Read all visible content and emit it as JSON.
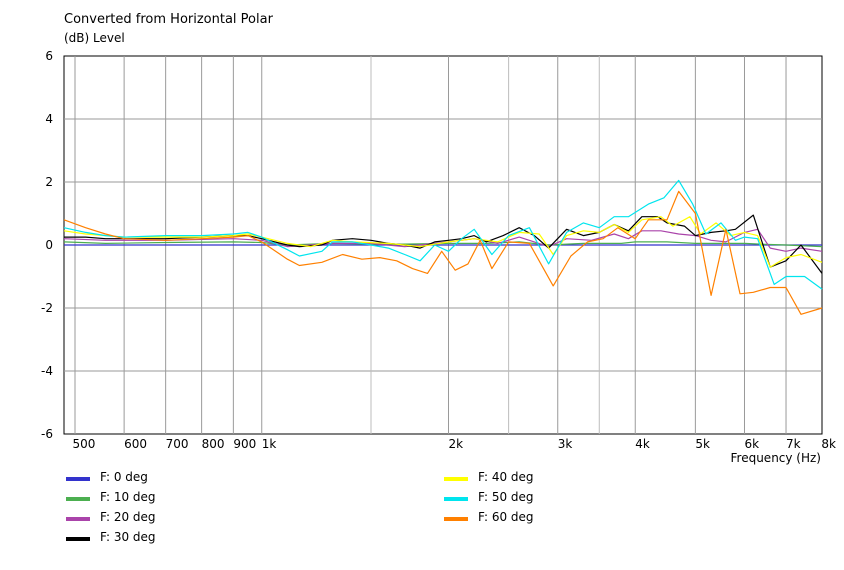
{
  "chart_data": {
    "type": "line",
    "title": "Converted from Horizontal Polar",
    "ylabel": "(dB)  Level",
    "xlabel": "Frequency  (Hz)",
    "x_scale": "log",
    "xlim": [
      480,
      8000
    ],
    "ylim": [
      -6,
      6
    ],
    "y_ticks": [
      {
        "value": 6,
        "label": "6"
      },
      {
        "value": 4,
        "label": "4"
      },
      {
        "value": 2,
        "label": "2"
      },
      {
        "value": 0,
        "label": "0"
      },
      {
        "value": -2,
        "label": "-2"
      },
      {
        "value": -4,
        "label": "-4"
      },
      {
        "value": -6,
        "label": "-6"
      }
    ],
    "x_ticks": [
      {
        "value": 500,
        "label": "500"
      },
      {
        "value": 600,
        "label": "600"
      },
      {
        "value": 700,
        "label": "700"
      },
      {
        "value": 800,
        "label": "800"
      },
      {
        "value": 900,
        "label": "900"
      },
      {
        "value": 1000,
        "label": "1k"
      },
      {
        "value": 2000,
        "label": "2k"
      },
      {
        "value": 3000,
        "label": "3k"
      },
      {
        "value": 4000,
        "label": "4k"
      },
      {
        "value": 5000,
        "label": "5k"
      },
      {
        "value": 6000,
        "label": "6k"
      },
      {
        "value": 7000,
        "label": "7k"
      },
      {
        "value": 8000,
        "label": "8k"
      }
    ],
    "x_minor_gridlines": [
      1500,
      2500,
      3500
    ],
    "grid": true,
    "legend_position": "bottom",
    "series": [
      {
        "name": "F: 0 deg",
        "color": "#3333cc",
        "points": [
          [
            480,
            0
          ],
          [
            600,
            0
          ],
          [
            800,
            0
          ],
          [
            1000,
            0
          ],
          [
            1500,
            0
          ],
          [
            2000,
            0
          ],
          [
            2500,
            0
          ],
          [
            3000,
            0
          ],
          [
            4000,
            0
          ],
          [
            5000,
            0
          ],
          [
            6000,
            0
          ],
          [
            7000,
            0
          ],
          [
            8000,
            0
          ]
        ]
      },
      {
        "name": "F: 10 deg",
        "color": "#4caf50",
        "points": [
          [
            480,
            0.1
          ],
          [
            560,
            0.05
          ],
          [
            700,
            0.08
          ],
          [
            900,
            0.1
          ],
          [
            1000,
            0.08
          ],
          [
            1100,
            0
          ],
          [
            1300,
            0.05
          ],
          [
            1600,
            0.02
          ],
          [
            2000,
            0.05
          ],
          [
            2300,
            0.05
          ],
          [
            2600,
            0.1
          ],
          [
            2900,
            0
          ],
          [
            3300,
            0.05
          ],
          [
            3800,
            0.05
          ],
          [
            4000,
            0.1
          ],
          [
            4500,
            0.1
          ],
          [
            5000,
            0.05
          ],
          [
            5500,
            0.05
          ],
          [
            6000,
            0.05
          ],
          [
            6500,
            0.02
          ],
          [
            7000,
            0
          ],
          [
            8000,
            -0.05
          ]
        ]
      },
      {
        "name": "F: 20 deg",
        "color": "#aa44aa",
        "points": [
          [
            480,
            0.2
          ],
          [
            560,
            0.15
          ],
          [
            700,
            0.15
          ],
          [
            900,
            0.2
          ],
          [
            1000,
            0.15
          ],
          [
            1100,
            -0.05
          ],
          [
            1300,
            0.05
          ],
          [
            1500,
            0.05
          ],
          [
            1700,
            -0.05
          ],
          [
            2000,
            0.1
          ],
          [
            2200,
            0.2
          ],
          [
            2400,
            0.05
          ],
          [
            2600,
            0.25
          ],
          [
            2900,
            -0.05
          ],
          [
            3100,
            0.2
          ],
          [
            3400,
            0.15
          ],
          [
            3700,
            0.35
          ],
          [
            3900,
            0.2
          ],
          [
            4100,
            0.45
          ],
          [
            4400,
            0.45
          ],
          [
            4700,
            0.35
          ],
          [
            5000,
            0.3
          ],
          [
            5300,
            0.15
          ],
          [
            5600,
            0.1
          ],
          [
            6000,
            0.4
          ],
          [
            6300,
            0.5
          ],
          [
            6600,
            -0.1
          ],
          [
            7000,
            -0.2
          ],
          [
            7400,
            -0.1
          ],
          [
            8000,
            -0.2
          ]
        ]
      },
      {
        "name": "F: 30 deg",
        "color": "#000000",
        "points": [
          [
            480,
            0.25
          ],
          [
            520,
            0.25
          ],
          [
            560,
            0.2
          ],
          [
            600,
            0.2
          ],
          [
            700,
            0.2
          ],
          [
            800,
            0.25
          ],
          [
            900,
            0.3
          ],
          [
            950,
            0.3
          ],
          [
            1000,
            0.2
          ],
          [
            1100,
            0
          ],
          [
            1150,
            -0.05
          ],
          [
            1250,
            0
          ],
          [
            1300,
            0.15
          ],
          [
            1400,
            0.2
          ],
          [
            1500,
            0.15
          ],
          [
            1600,
            0.05
          ],
          [
            1700,
            0
          ],
          [
            1800,
            -0.1
          ],
          [
            1900,
            0.1
          ],
          [
            2000,
            0.15
          ],
          [
            2100,
            0.2
          ],
          [
            2200,
            0.3
          ],
          [
            2300,
            0.1
          ],
          [
            2450,
            0.3
          ],
          [
            2600,
            0.55
          ],
          [
            2750,
            0.3
          ],
          [
            2900,
            -0.1
          ],
          [
            3100,
            0.5
          ],
          [
            3300,
            0.3
          ],
          [
            3500,
            0.4
          ],
          [
            3700,
            0.65
          ],
          [
            3900,
            0.45
          ],
          [
            4100,
            0.9
          ],
          [
            4350,
            0.9
          ],
          [
            4500,
            0.7
          ],
          [
            4800,
            0.6
          ],
          [
            5000,
            0.3
          ],
          [
            5300,
            0.4
          ],
          [
            5600,
            0.45
          ],
          [
            5800,
            0.5
          ],
          [
            6200,
            0.95
          ],
          [
            6600,
            -0.7
          ],
          [
            7000,
            -0.5
          ],
          [
            7400,
            0.0
          ],
          [
            8000,
            -0.9
          ]
        ]
      },
      {
        "name": "F: 40 deg",
        "color": "#ffff00",
        "points": [
          [
            480,
            0.45
          ],
          [
            520,
            0.35
          ],
          [
            560,
            0.3
          ],
          [
            600,
            0.25
          ],
          [
            700,
            0.25
          ],
          [
            800,
            0.25
          ],
          [
            900,
            0.3
          ],
          [
            950,
            0.35
          ],
          [
            1000,
            0.25
          ],
          [
            1100,
            0.05
          ],
          [
            1200,
            -0.05
          ],
          [
            1300,
            0.15
          ],
          [
            1400,
            0.1
          ],
          [
            1600,
            0.05
          ],
          [
            1800,
            -0.05
          ],
          [
            2000,
            0.1
          ],
          [
            2200,
            0.2
          ],
          [
            2400,
            0.1
          ],
          [
            2600,
            0.4
          ],
          [
            2800,
            0.35
          ],
          [
            2950,
            -0.3
          ],
          [
            3100,
            0.3
          ],
          [
            3300,
            0.45
          ],
          [
            3500,
            0.4
          ],
          [
            3700,
            0.65
          ],
          [
            3900,
            0.4
          ],
          [
            4100,
            0.8
          ],
          [
            4400,
            0.9
          ],
          [
            4600,
            0.6
          ],
          [
            4900,
            0.9
          ],
          [
            5100,
            0.35
          ],
          [
            5400,
            0.7
          ],
          [
            5700,
            0.3
          ],
          [
            6000,
            0.4
          ],
          [
            6300,
            0.3
          ],
          [
            6600,
            -0.7
          ],
          [
            7000,
            -0.4
          ],
          [
            7400,
            -0.3
          ],
          [
            8000,
            -0.55
          ]
        ]
      },
      {
        "name": "F: 50 deg",
        "color": "#00e5ee",
        "points": [
          [
            480,
            0.55
          ],
          [
            520,
            0.4
          ],
          [
            560,
            0.3
          ],
          [
            600,
            0.25
          ],
          [
            700,
            0.3
          ],
          [
            800,
            0.3
          ],
          [
            900,
            0.35
          ],
          [
            950,
            0.4
          ],
          [
            1000,
            0.25
          ],
          [
            1100,
            -0.15
          ],
          [
            1150,
            -0.35
          ],
          [
            1250,
            -0.2
          ],
          [
            1300,
            0.1
          ],
          [
            1400,
            0.1
          ],
          [
            1500,
            0.0
          ],
          [
            1600,
            -0.1
          ],
          [
            1700,
            -0.3
          ],
          [
            1800,
            -0.5
          ],
          [
            1900,
            0.0
          ],
          [
            2000,
            -0.2
          ],
          [
            2100,
            0.2
          ],
          [
            2200,
            0.5
          ],
          [
            2350,
            -0.3
          ],
          [
            2500,
            0.3
          ],
          [
            2700,
            0.55
          ],
          [
            2900,
            -0.6
          ],
          [
            3100,
            0.4
          ],
          [
            3300,
            0.7
          ],
          [
            3500,
            0.55
          ],
          [
            3700,
            0.9
          ],
          [
            3900,
            0.9
          ],
          [
            4200,
            1.3
          ],
          [
            4450,
            1.5
          ],
          [
            4700,
            2.05
          ],
          [
            4950,
            1.3
          ],
          [
            5200,
            0.35
          ],
          [
            5500,
            0.7
          ],
          [
            5800,
            0.15
          ],
          [
            6000,
            0.25
          ],
          [
            6300,
            0.2
          ],
          [
            6700,
            -1.25
          ],
          [
            7000,
            -1.0
          ],
          [
            7500,
            -1.0
          ],
          [
            8000,
            -1.4
          ]
        ]
      },
      {
        "name": "F: 60 deg",
        "color": "#ff8000",
        "points": [
          [
            480,
            0.8
          ],
          [
            520,
            0.55
          ],
          [
            560,
            0.35
          ],
          [
            600,
            0.2
          ],
          [
            700,
            0.15
          ],
          [
            800,
            0.2
          ],
          [
            900,
            0.25
          ],
          [
            950,
            0.3
          ],
          [
            1000,
            0.1
          ],
          [
            1100,
            -0.45
          ],
          [
            1150,
            -0.65
          ],
          [
            1250,
            -0.55
          ],
          [
            1350,
            -0.3
          ],
          [
            1450,
            -0.45
          ],
          [
            1550,
            -0.4
          ],
          [
            1650,
            -0.5
          ],
          [
            1750,
            -0.75
          ],
          [
            1850,
            -0.9
          ],
          [
            1950,
            -0.2
          ],
          [
            2050,
            -0.8
          ],
          [
            2150,
            -0.6
          ],
          [
            2250,
            0.15
          ],
          [
            2350,
            -0.75
          ],
          [
            2500,
            0.1
          ],
          [
            2700,
            0.05
          ],
          [
            2950,
            -1.3
          ],
          [
            3150,
            -0.35
          ],
          [
            3350,
            0.1
          ],
          [
            3550,
            0.2
          ],
          [
            3750,
            0.55
          ],
          [
            4000,
            0.2
          ],
          [
            4200,
            0.8
          ],
          [
            4500,
            0.8
          ],
          [
            4700,
            1.7
          ],
          [
            5000,
            1.0
          ],
          [
            5300,
            -1.6
          ],
          [
            5600,
            0.5
          ],
          [
            5900,
            -1.55
          ],
          [
            6200,
            -1.5
          ],
          [
            6600,
            -1.35
          ],
          [
            7000,
            -1.35
          ],
          [
            7400,
            -2.2
          ],
          [
            8000,
            -2.0
          ]
        ]
      }
    ]
  }
}
